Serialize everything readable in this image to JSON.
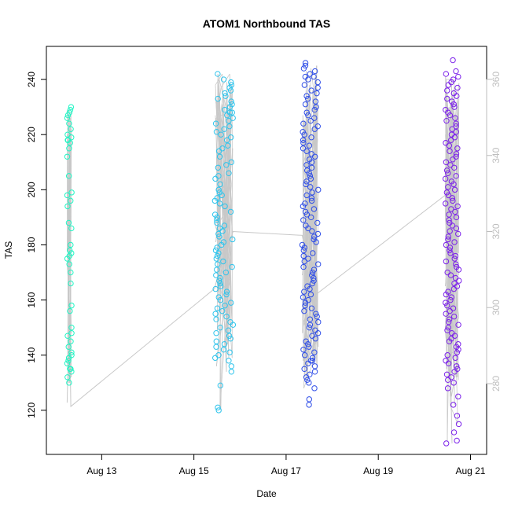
{
  "chart_data": {
    "type": "scatter",
    "title": "ATOM1 Northbound TAS",
    "xlabel": "Date",
    "ylabel": "TAS",
    "x_ticks": [
      "Aug 13",
      "Aug 15",
      "Aug 17",
      "Aug 19",
      "Aug 21"
    ],
    "x_tick_days": [
      13,
      15,
      17,
      19,
      21
    ],
    "xlim_days": [
      11.8,
      21.35
    ],
    "ylim": [
      104,
      252
    ],
    "y_ticks": [
      120,
      140,
      160,
      180,
      200,
      220,
      240
    ],
    "y2_ticks": [
      280,
      300,
      320,
      340,
      360
    ],
    "y2_color": "#bebebe",
    "grid": false,
    "series_colors": [
      "#1ff5c4",
      "#2ec4ec",
      "#2f4ee8",
      "#7b20ea"
    ],
    "series": [
      {
        "day_range": [
          12.25,
          12.35
        ],
        "values": [
          230,
          229,
          228,
          227,
          226,
          224,
          222,
          220,
          219,
          218,
          218,
          217,
          215,
          212,
          205,
          199,
          198,
          196,
          194,
          188,
          186,
          180,
          178,
          177,
          176,
          175,
          173,
          170,
          166,
          158,
          156,
          150,
          148,
          147,
          145,
          143,
          141,
          140,
          139,
          138,
          137,
          135,
          135,
          134,
          132,
          130
        ]
      },
      {
        "day_range": [
          15.45,
          15.85
        ],
        "values": [
          242,
          240,
          239,
          238,
          237,
          236,
          235,
          234,
          233,
          232,
          231,
          230,
          229,
          228,
          228,
          227,
          226,
          225,
          224,
          223,
          222,
          221,
          220,
          219,
          218,
          216,
          215,
          214,
          212,
          210,
          209,
          208,
          206,
          205,
          204,
          202,
          200,
          199,
          198,
          197,
          196,
          195,
          194,
          192,
          191,
          190,
          189,
          188,
          187,
          186,
          185,
          184,
          183,
          182,
          181,
          180,
          179,
          178,
          177,
          176,
          175,
          174,
          173,
          172,
          171,
          170,
          169,
          168,
          167,
          166,
          165,
          164,
          163,
          162,
          161,
          160,
          159,
          158,
          157,
          156,
          155,
          154,
          153,
          152,
          151,
          150,
          149,
          148,
          147,
          146,
          145,
          144,
          143,
          142,
          141,
          140,
          139,
          138,
          136,
          134,
          129,
          121,
          120
        ]
      },
      {
        "day_range": [
          17.35,
          17.7
        ],
        "values": [
          246,
          245,
          244,
          243,
          242,
          241,
          241,
          240,
          239,
          238,
          237,
          236,
          235,
          234,
          233,
          232,
          231,
          230,
          229,
          228,
          227,
          226,
          225,
          224,
          223,
          222,
          221,
          220,
          219,
          218,
          217,
          216,
          215,
          214,
          213,
          212,
          211,
          210,
          209,
          208,
          207,
          206,
          205,
          204,
          203,
          202,
          201,
          200,
          199,
          198,
          197,
          196,
          195,
          194,
          193,
          192,
          191,
          190,
          189,
          188,
          187,
          186,
          185,
          184,
          183,
          182,
          181,
          180,
          179,
          178,
          177,
          176,
          175,
          174,
          173,
          172,
          171,
          170,
          169,
          168,
          167,
          166,
          165,
          164,
          163,
          162,
          161,
          160,
          159,
          158,
          157,
          156,
          155,
          154,
          153,
          152,
          151,
          150,
          149,
          148,
          147,
          146,
          145,
          144,
          143,
          142,
          141,
          140,
          139,
          138,
          138,
          137,
          136,
          135,
          134,
          133,
          132,
          131,
          130,
          128,
          124,
          122
        ]
      },
      {
        "day_range": [
          20.45,
          20.75
        ],
        "values": [
          247,
          243,
          242,
          241,
          240,
          239,
          238,
          237,
          236,
          235,
          234,
          233,
          232,
          231,
          230,
          229,
          228,
          227,
          226,
          225,
          224,
          223,
          222,
          221,
          220,
          219,
          218,
          217,
          216,
          215,
          214,
          213,
          212,
          211,
          210,
          209,
          208,
          207,
          206,
          205,
          204,
          203,
          202,
          201,
          200,
          199,
          198,
          197,
          196,
          195,
          194,
          193,
          192,
          191,
          190,
          189,
          188,
          187,
          186,
          185,
          184,
          183,
          182,
          181,
          180,
          179,
          178,
          177,
          176,
          175,
          174,
          173,
          172,
          171,
          170,
          169,
          168,
          167,
          166,
          165,
          164,
          163,
          162,
          161,
          160,
          159,
          158,
          157,
          156,
          155,
          154,
          153,
          152,
          151,
          150,
          149,
          148,
          147,
          146,
          145,
          144,
          143,
          142,
          141,
          140,
          139,
          138,
          137,
          136,
          135,
          134,
          133,
          132,
          131,
          130,
          128,
          125,
          122,
          118,
          115,
          112,
          109,
          108
        ]
      }
    ],
    "secondary_line": {
      "color": "#c8c8c8",
      "x_days": [
        12.25,
        12.3,
        12.33,
        15.45,
        15.55,
        15.85,
        17.35,
        17.6,
        20.5,
        20.75
      ],
      "y2_values": [
        275,
        300,
        274,
        305,
        310,
        320,
        319,
        303,
        330,
        359
      ]
    }
  }
}
